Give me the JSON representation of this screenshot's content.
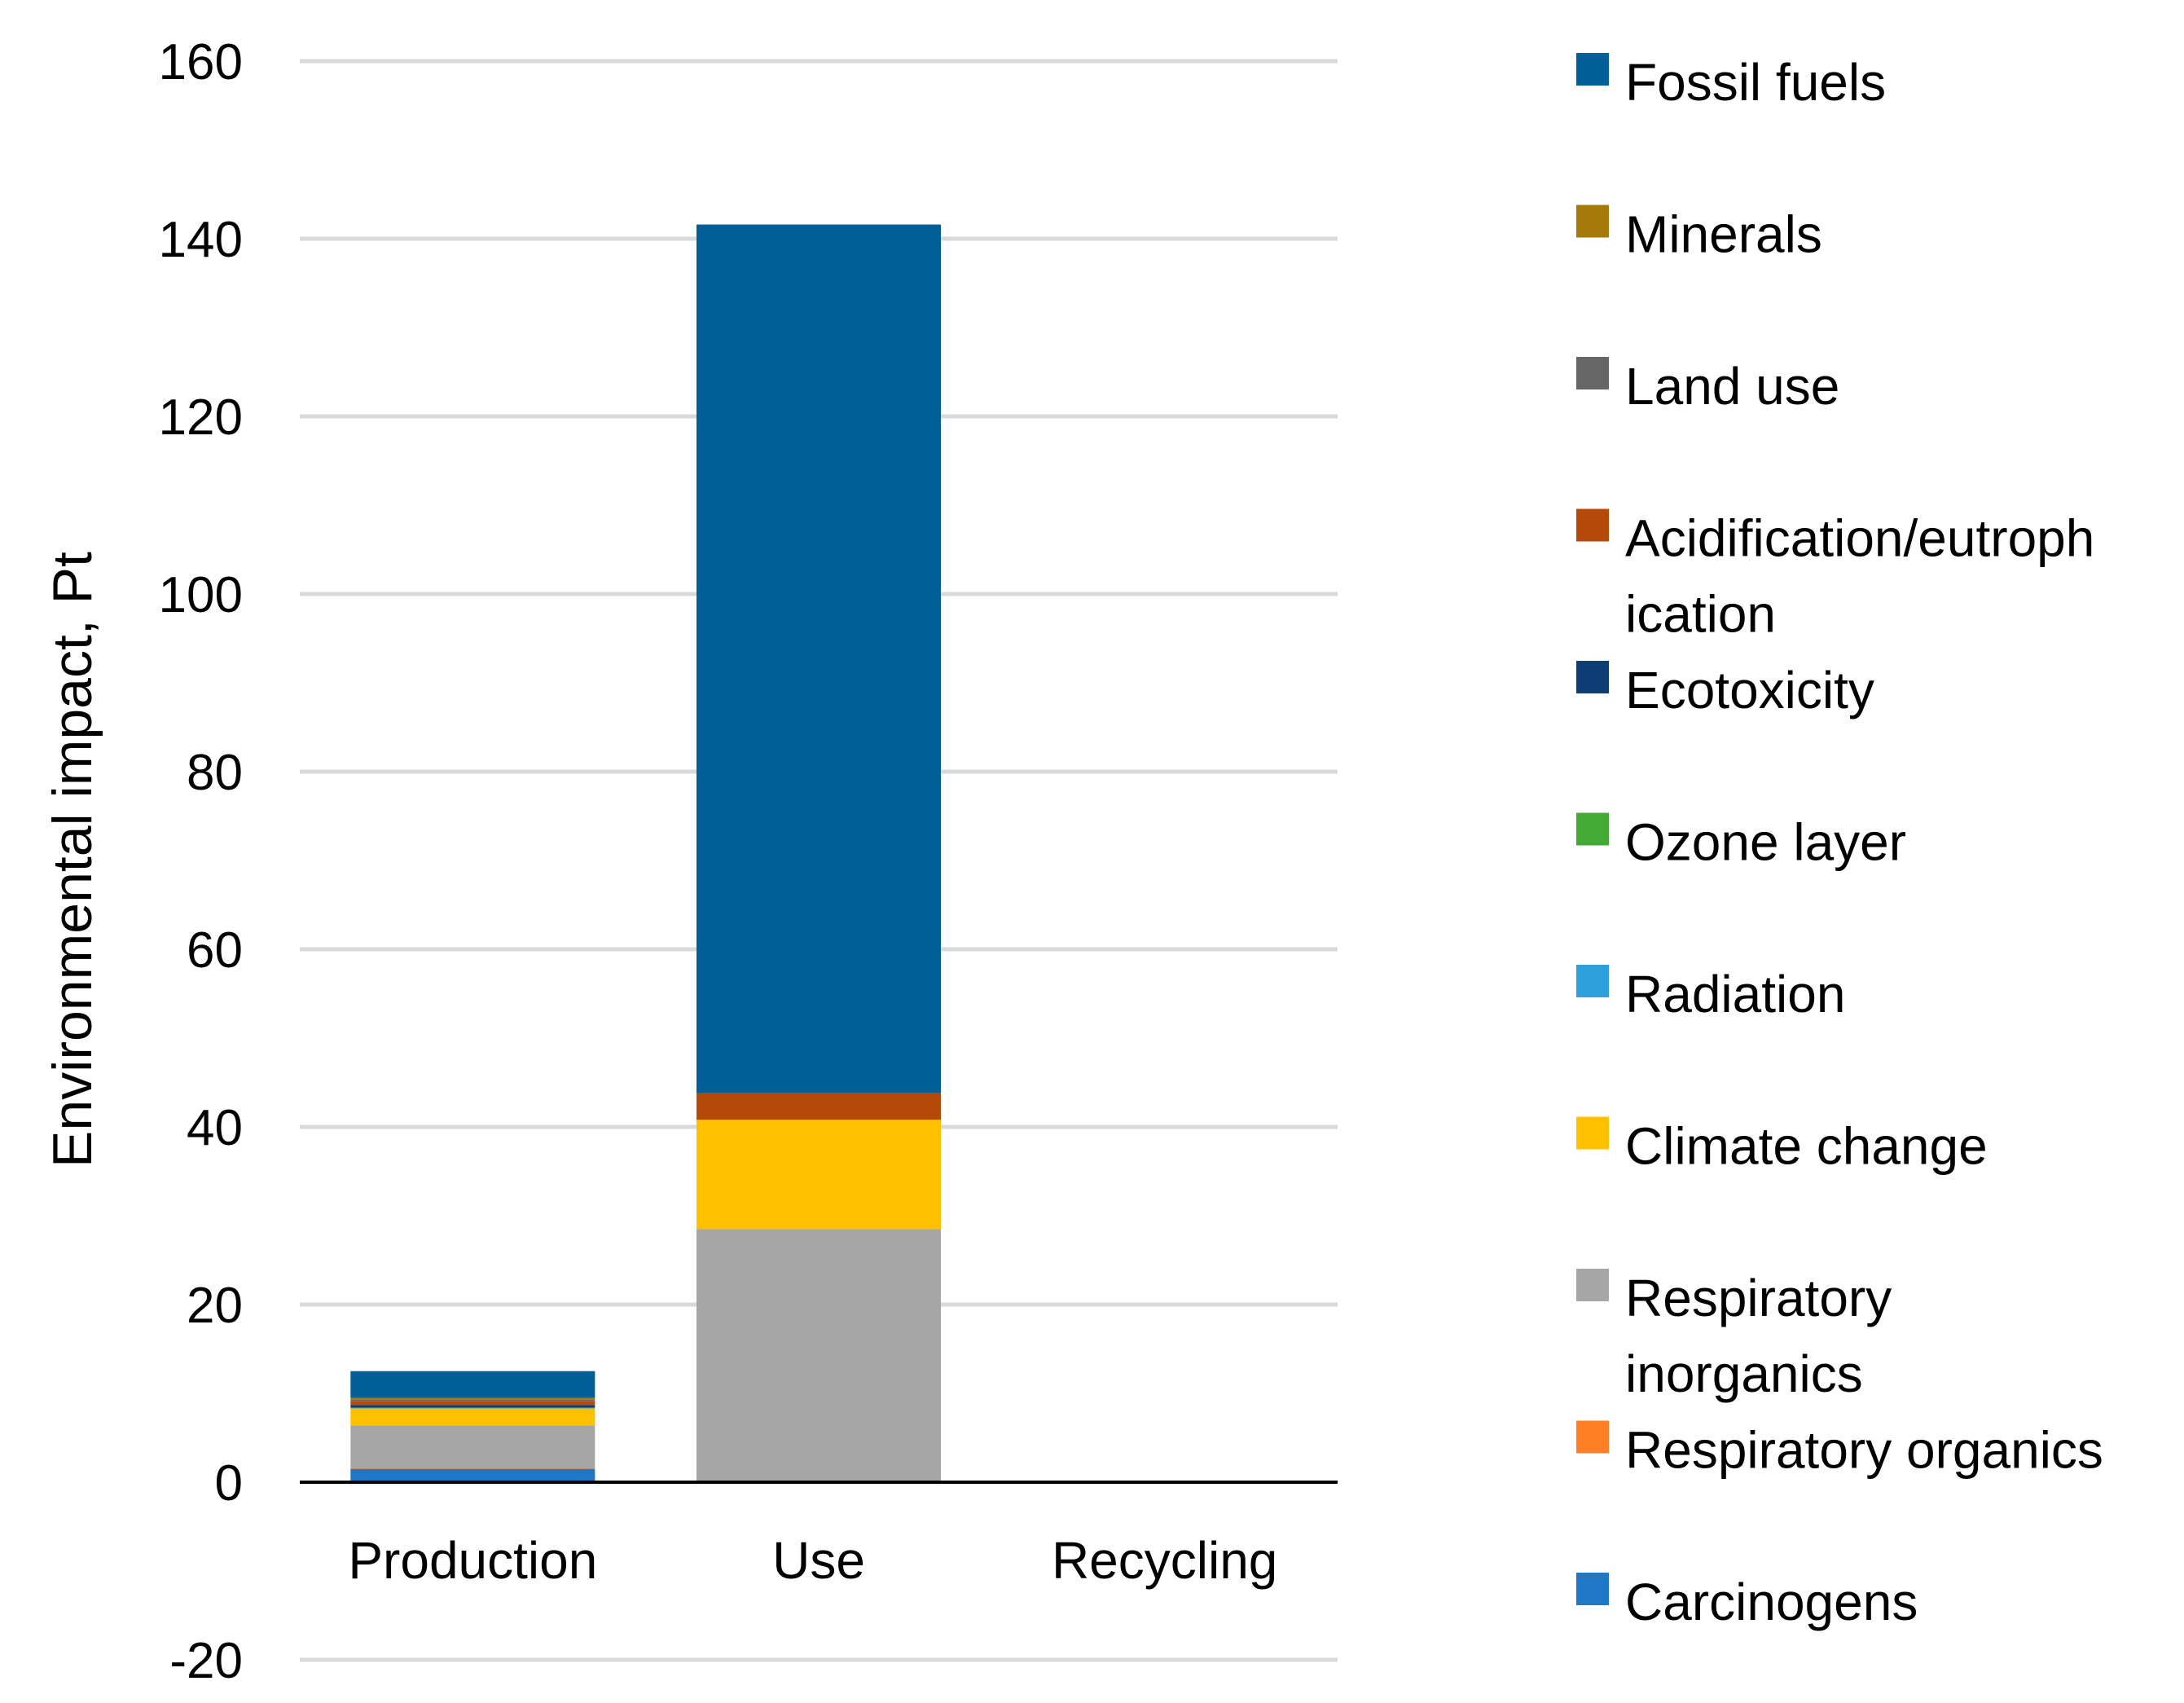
{
  "chart_data": {
    "type": "bar",
    "stacked": true,
    "title": "",
    "xlabel": "",
    "ylabel": "Environmental impact, Pt",
    "ylim": [
      -20,
      160
    ],
    "yticks": [
      160,
      140,
      120,
      100,
      80,
      60,
      40,
      20,
      0,
      -20
    ],
    "ytick_labels": [
      "160",
      "140",
      "120",
      "100",
      "80",
      "60",
      "40",
      "20",
      "0",
      "-20"
    ],
    "grid": true,
    "legend_position": "right",
    "categories": [
      "Production",
      "Use",
      "Recycling"
    ],
    "series": [
      {
        "name": "Carcinogens",
        "color": "#1F77C8",
        "values": [
          1.5,
          0,
          0
        ]
      },
      {
        "name": "Respiratory organics",
        "color": "#FF7F27",
        "values": [
          0.1,
          0,
          0
        ]
      },
      {
        "name": "Respiratory inorganics",
        "color": "#A6A6A6",
        "values": [
          4.8,
          28.5,
          0
        ]
      },
      {
        "name": "Climate change",
        "color": "#FFC000",
        "values": [
          1.9,
          12.3,
          0
        ]
      },
      {
        "name": "Radiation",
        "color": "#2E9FDB",
        "values": [
          0.1,
          0,
          0
        ]
      },
      {
        "name": "Ozone layer",
        "color": "#43AA36",
        "values": [
          0,
          0,
          0
        ]
      },
      {
        "name": "Ecotoxicity",
        "color": "#0D3D73",
        "values": [
          0.3,
          0,
          0
        ]
      },
      {
        "name": "Acidification/eutrophication",
        "color": "#B54A08",
        "values": [
          0.4,
          3.0,
          0
        ]
      },
      {
        "name": "Land use",
        "color": "#666666",
        "values": [
          0.2,
          0,
          0
        ]
      },
      {
        "name": "Minerals",
        "color": "#A57A09",
        "values": [
          0.2,
          0,
          0
        ]
      },
      {
        "name": "Fossil fuels",
        "color": "#005F96",
        "values": [
          3.0,
          97.8,
          0
        ]
      }
    ],
    "legend": [
      {
        "lines": [
          "Fossil fuels"
        ],
        "color": "#005F96"
      },
      {
        "lines": [
          "Minerals"
        ],
        "color": "#A57A09"
      },
      {
        "lines": [
          "Land use"
        ],
        "color": "#666666"
      },
      {
        "lines": [
          "Acidification/eutroph",
          "ication"
        ],
        "color": "#B54A08"
      },
      {
        "lines": [
          "Ecotoxicity"
        ],
        "color": "#0D3D73"
      },
      {
        "lines": [
          "Ozone layer"
        ],
        "color": "#43AA36"
      },
      {
        "lines": [
          "Radiation"
        ],
        "color": "#2E9FDB"
      },
      {
        "lines": [
          "Climate change"
        ],
        "color": "#FFC000"
      },
      {
        "lines": [
          "Respiratory",
          "inorganics"
        ],
        "color": "#A6A6A6"
      },
      {
        "lines": [
          "Respiratory organics"
        ],
        "color": "#FF7F27"
      },
      {
        "lines": [
          "Carcinogens"
        ],
        "color": "#1F77C8"
      }
    ],
    "gridline_color": "#D9D9D9",
    "axis_color": "#000000"
  }
}
